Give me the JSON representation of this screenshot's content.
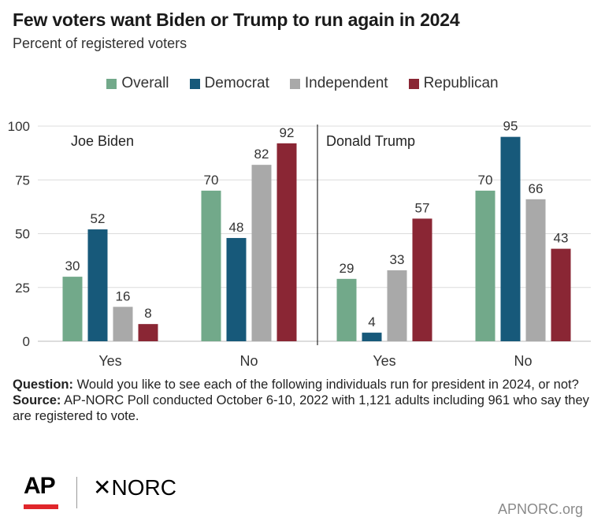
{
  "header": {
    "title": "Few voters want Biden or Trump to run again in 2024",
    "subtitle": "Percent of registered voters"
  },
  "colors": {
    "overall": "#72a98a",
    "democrat": "#17597a",
    "independent": "#a9a9a9",
    "republican": "#8a2634"
  },
  "legend": [
    {
      "label": "Overall",
      "color": "#72a98a"
    },
    {
      "label": "Democrat",
      "color": "#17597a"
    },
    {
      "label": "Independent",
      "color": "#a9a9a9"
    },
    {
      "label": "Republican",
      "color": "#8a2634"
    }
  ],
  "chart_data": {
    "type": "bar",
    "ylim": [
      0,
      100
    ],
    "yticks": [
      0,
      25,
      50,
      75,
      100
    ],
    "grid": true,
    "legend_position": "top",
    "panels": [
      {
        "label": "Joe Biden",
        "categories": [
          "Yes",
          "No"
        ],
        "series": [
          {
            "name": "Overall",
            "values": [
              30,
              70
            ]
          },
          {
            "name": "Democrat",
            "values": [
              52,
              48
            ]
          },
          {
            "name": "Independent",
            "values": [
              16,
              82
            ]
          },
          {
            "name": "Republican",
            "values": [
              8,
              92
            ]
          }
        ]
      },
      {
        "label": "Donald Trump",
        "categories": [
          "Yes",
          "No"
        ],
        "series": [
          {
            "name": "Overall",
            "values": [
              29,
              70
            ]
          },
          {
            "name": "Democrat",
            "values": [
              4,
              95
            ]
          },
          {
            "name": "Independent",
            "values": [
              33,
              66
            ]
          },
          {
            "name": "Republican",
            "values": [
              57,
              43
            ]
          }
        ]
      }
    ]
  },
  "notes": {
    "question_label": "Question:",
    "question_text": " Would you like to see each of the following individuals run for president in 2024, or not?",
    "source_label": "Source:",
    "source_text": " AP-NORC Poll conducted October 6-10, 2022 with 1,121 adults  including 961 who say they are registered to vote."
  },
  "footer": {
    "ap_logo": "AP",
    "norc_logo": "NORC",
    "site": "APNORC.org"
  }
}
